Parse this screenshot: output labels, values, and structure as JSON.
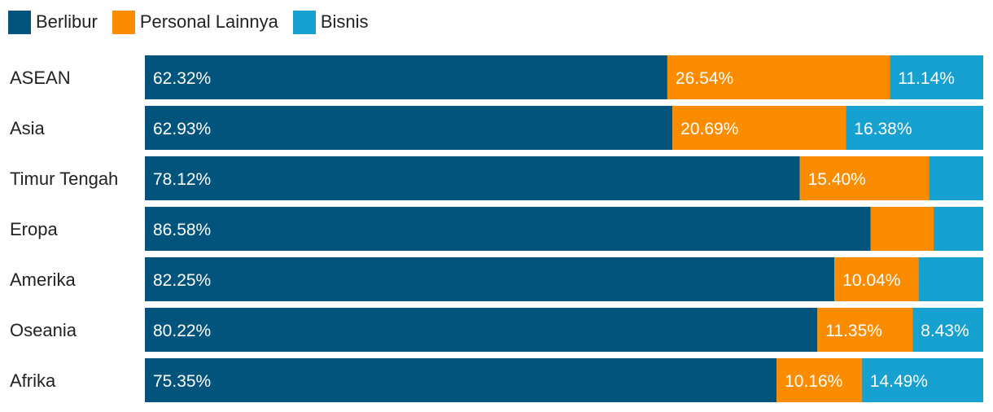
{
  "chart_data": {
    "type": "bar",
    "orientation": "horizontal",
    "stacked": true,
    "categories": [
      "ASEAN",
      "Asia",
      "Timur Tengah",
      "Eropa",
      "Amerika",
      "Oseania",
      "Afrika"
    ],
    "series": [
      {
        "name": "Berlibur",
        "color": "#02547c",
        "values": [
          62.32,
          62.93,
          78.12,
          86.58,
          82.25,
          80.22,
          75.35
        ],
        "labels": [
          "62.32%",
          "62.93%",
          "78.12%",
          "86.58%",
          "82.25%",
          "80.22%",
          "75.35%"
        ]
      },
      {
        "name": "Personal Lainnya",
        "color": "#fb8c00",
        "values": [
          26.54,
          20.69,
          15.4,
          7.5,
          10.04,
          11.35,
          10.16
        ],
        "labels": [
          "26.54%",
          "20.69%",
          "15.40%",
          "",
          "10.04%",
          "11.35%",
          "10.16%"
        ]
      },
      {
        "name": "Bisnis",
        "color": "#16a1d1",
        "values": [
          11.14,
          16.38,
          6.48,
          5.92,
          7.71,
          8.43,
          14.49
        ],
        "labels": [
          "11.14%",
          "16.38%",
          "",
          "",
          "",
          "8.43%",
          "14.49%"
        ]
      }
    ],
    "xlim": [
      0,
      100
    ],
    "grid": false,
    "legend_position": "top-left"
  }
}
